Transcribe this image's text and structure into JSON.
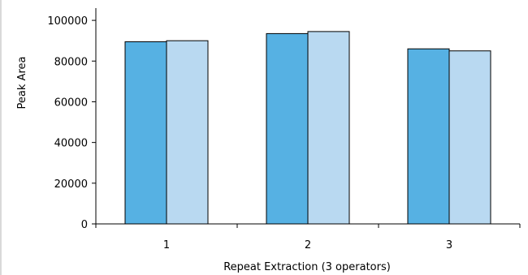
{
  "chart_data": {
    "type": "bar",
    "categories": [
      "1",
      "2",
      "3"
    ],
    "series": [
      {
        "values": [
          89500,
          93500,
          86000
        ],
        "color": "#56b1e3"
      },
      {
        "values": [
          90000,
          94500,
          85000
        ],
        "color": "#b9d9f1"
      }
    ],
    "xlabel": "Repeat Extraction (3 operators)",
    "ylabel": "Peak Area",
    "ylim": [
      0,
      110000
    ],
    "yticks": [
      0,
      20000,
      40000,
      60000,
      80000,
      100000
    ],
    "ytick_labels": [
      "0",
      "20000",
      "40000",
      "60000",
      "80000",
      "100000"
    ],
    "grid": false,
    "legend": "none"
  }
}
